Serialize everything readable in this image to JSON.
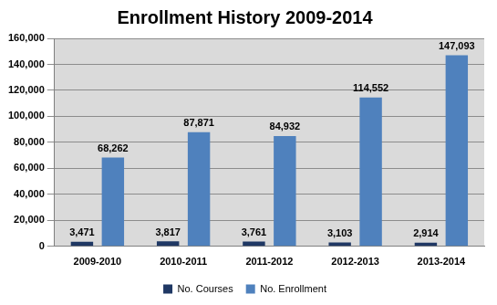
{
  "chart_data": {
    "type": "bar",
    "title": "Enrollment History 2009-2014",
    "categories": [
      "2009-2010",
      "2010-2011",
      "2011-2012",
      "2012-2013",
      "2013-2014"
    ],
    "series": [
      {
        "name": "No. Courses",
        "color": "#1f3864",
        "values": [
          3471,
          3817,
          3761,
          3103,
          2914
        ],
        "value_labels": [
          "3,471",
          "3,817",
          "3,761",
          "3,103",
          "2,914"
        ]
      },
      {
        "name": "No. Enrollment",
        "color": "#4f81bd",
        "values": [
          68262,
          87871,
          84932,
          114552,
          147093
        ],
        "value_labels": [
          "68,262",
          "87,871",
          "84,932",
          "114,552",
          "147,093"
        ]
      }
    ],
    "ylim": [
      0,
      160000
    ],
    "yticks": [
      0,
      {
        "value": 20000,
        "label": "20,000"
      },
      {
        "value": 40000,
        "label": "40,000"
      },
      {
        "value": 60000,
        "label": "60,000"
      },
      {
        "value": 80000,
        "label": "80,000"
      },
      {
        "value": 100000,
        "label": "100,000"
      },
      {
        "value": 120000,
        "label": "120,000"
      },
      {
        "value": 140000,
        "label": "140,000"
      },
      {
        "value": 160000,
        "label": "160,000"
      }
    ],
    "grid": true,
    "legend": "bottom",
    "data_labels": true
  }
}
